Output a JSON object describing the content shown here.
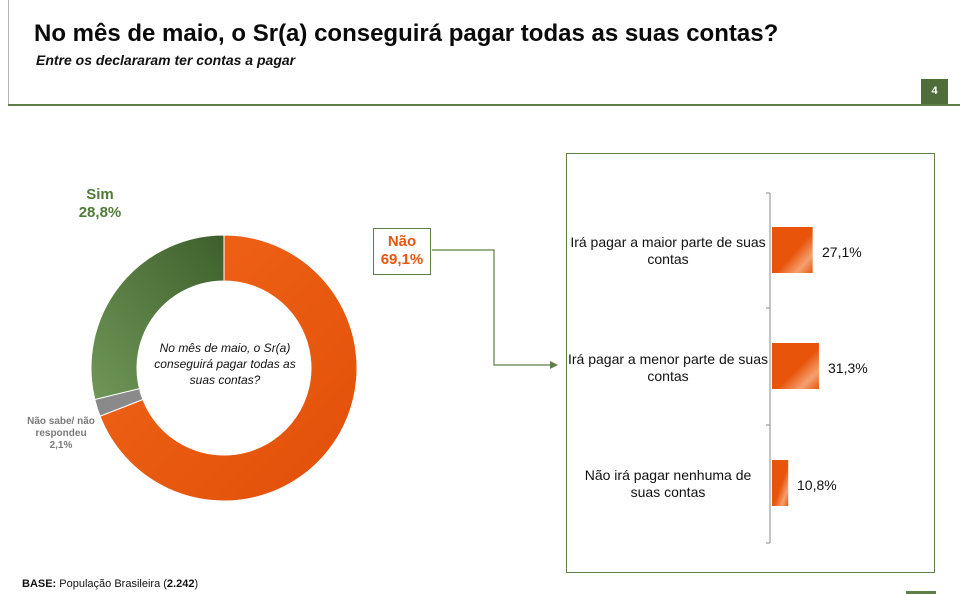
{
  "header": {
    "title": "No mês de maio, o Sr(a) conseguirá pagar todas as suas contas?",
    "subtitle": "Entre os declararam ter contas a pagar",
    "page_number": "4"
  },
  "colors": {
    "accent": "#e8550a",
    "green": "#4f7a37",
    "dark_green": "#5e7f45",
    "gray": "#8a8a8a"
  },
  "chart_data": [
    {
      "type": "pie",
      "donut": true,
      "center_text": "No mês de maio, o Sr(a) conseguirá pagar todas as suas contas?",
      "slices": [
        {
          "label": "Não",
          "value": 69.1,
          "value_label": "69,1%",
          "color": "#e8550a"
        },
        {
          "label": "Não sabe/ não respondeu",
          "value": 2.1,
          "value_label": "2,1%",
          "color": "#8a8a8a"
        },
        {
          "label": "Sim",
          "value": 28.8,
          "value_label": "28,8%",
          "color": "#4f7a37"
        }
      ]
    },
    {
      "type": "bar",
      "orientation": "horizontal",
      "categories": [
        "Irá pagar a maior parte de suas contas",
        "Irá pagar a menor parte de suas contas",
        "Não irá pagar nenhuma de suas contas"
      ],
      "values": [
        27.1,
        31.3,
        10.8
      ],
      "value_labels": [
        "27,1%",
        "31,3%",
        "10,8%"
      ],
      "color": "#e8550a"
    }
  ],
  "footer": {
    "base_label": "BASE:",
    "base_text": "População Brasileira (",
    "base_count": "2.242",
    "base_close": ")"
  }
}
